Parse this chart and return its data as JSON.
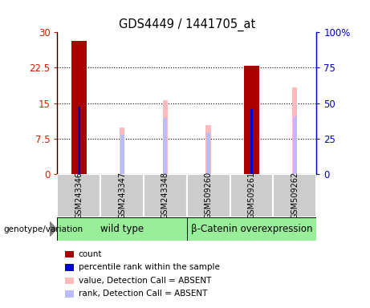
{
  "title": "GDS4449 / 1441705_at",
  "categories": [
    "GSM243346",
    "GSM243347",
    "GSM243348",
    "GSM509260",
    "GSM509261",
    "GSM509262"
  ],
  "left_ylim": [
    0,
    30
  ],
  "right_ylim": [
    0,
    100
  ],
  "left_yticks": [
    0,
    7.5,
    15,
    22.5,
    30
  ],
  "right_yticks": [
    0,
    25,
    50,
    75,
    100
  ],
  "left_yticklabels": [
    "0",
    "7.5",
    "15",
    "22.5",
    "30"
  ],
  "right_yticklabels": [
    "0",
    "25",
    "50",
    "75",
    "100%"
  ],
  "count_values": [
    28.2,
    0,
    0,
    0,
    23.0,
    0
  ],
  "rank_values": [
    14.3,
    0,
    0,
    0,
    13.8,
    0
  ],
  "absent_value_values": [
    0,
    9.8,
    15.7,
    10.3,
    0,
    18.3
  ],
  "absent_rank_values": [
    0,
    8.3,
    11.8,
    8.8,
    0,
    12.3
  ],
  "count_color": "#aa0000",
  "rank_color": "#0000cc",
  "absent_value_color": "#ffbbbb",
  "absent_rank_color": "#bbbbff",
  "group1_label": "wild type",
  "group2_label": "β-Catenin overexpression",
  "group1_color": "#99ee99",
  "group2_color": "#99ee99",
  "sample_bg_color": "#cccccc",
  "legend_items": [
    {
      "color": "#aa0000",
      "label": "count"
    },
    {
      "color": "#0000cc",
      "label": "percentile rank within the sample"
    },
    {
      "color": "#ffbbbb",
      "label": "value, Detection Call = ABSENT"
    },
    {
      "color": "#bbbbff",
      "label": "rank, Detection Call = ABSENT"
    }
  ],
  "left_axis_color": "#cc2200",
  "right_axis_color": "#0000cc",
  "count_bar_width": 0.35,
  "absent_value_bar_width": 0.12,
  "absent_rank_bar_width": 0.09,
  "rank_bar_width": 0.06
}
